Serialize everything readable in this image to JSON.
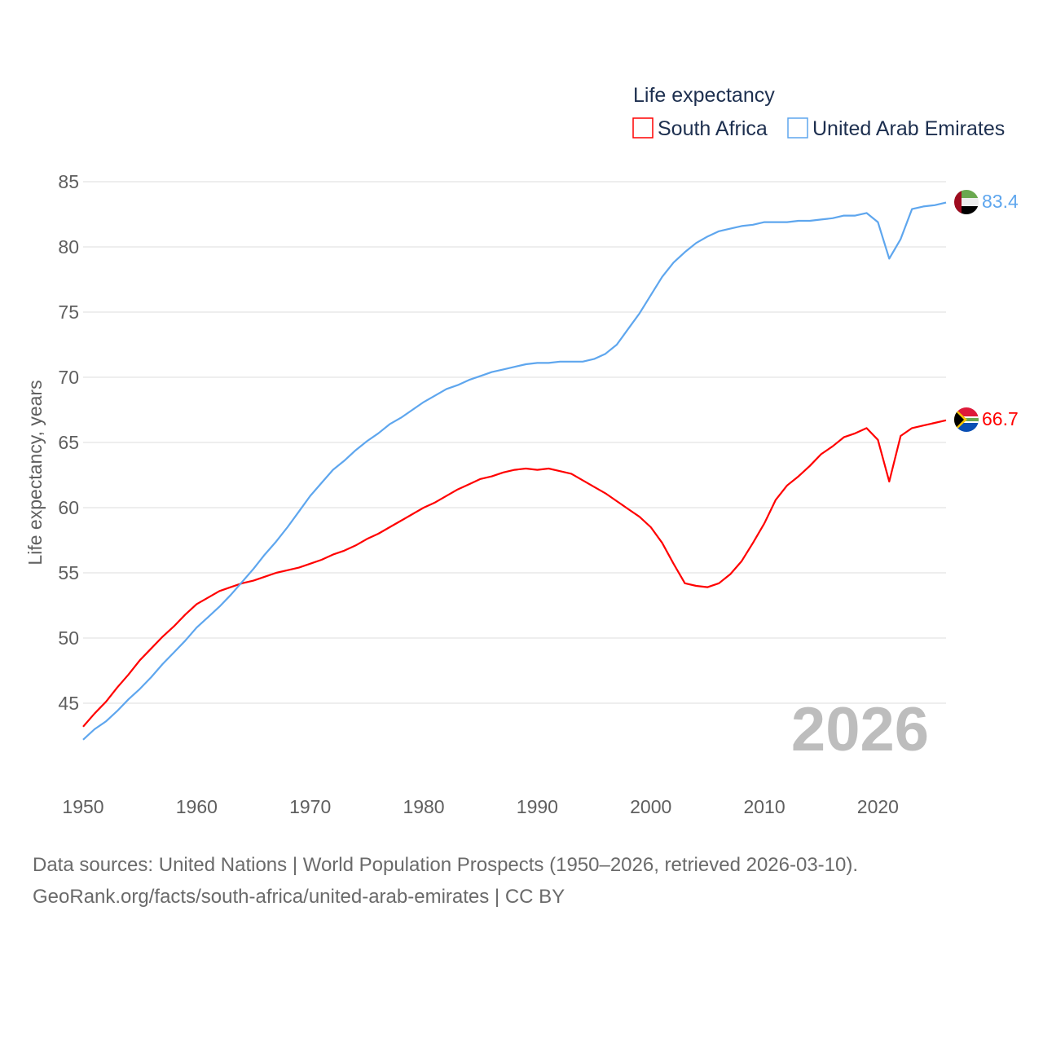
{
  "chart_data": {
    "type": "line",
    "title": "Life expectancy",
    "xlabel": "",
    "ylabel": "Life expectancy, years",
    "xlim": [
      1950,
      2026
    ],
    "ylim": [
      42,
      85
    ],
    "yticks": [
      45,
      50,
      55,
      60,
      65,
      70,
      75,
      80,
      85
    ],
    "xticks": [
      1950,
      1960,
      1970,
      1980,
      1990,
      2000,
      2010,
      2020
    ],
    "grid": true,
    "legend_placement": "top-right",
    "current_year_label": "2026",
    "x_start": 1950,
    "series": [
      {
        "name": "South Africa",
        "color": "#ff0000",
        "end_label": "66.7",
        "flag": "south-africa-flag",
        "values": [
          43.2,
          44.2,
          45.1,
          46.2,
          47.2,
          48.3,
          49.2,
          50.1,
          50.9,
          51.8,
          52.6,
          53.1,
          53.6,
          53.9,
          54.2,
          54.4,
          54.7,
          55.0,
          55.2,
          55.4,
          55.7,
          56.0,
          56.4,
          56.7,
          57.1,
          57.6,
          58.0,
          58.5,
          59.0,
          59.5,
          60.0,
          60.4,
          60.9,
          61.4,
          61.8,
          62.2,
          62.4,
          62.7,
          62.9,
          63.0,
          62.9,
          63.0,
          62.8,
          62.6,
          62.1,
          61.6,
          61.1,
          60.5,
          59.9,
          59.3,
          58.5,
          57.3,
          55.7,
          54.2,
          54.0,
          53.9,
          54.2,
          54.9,
          55.9,
          57.3,
          58.8,
          60.6,
          61.7,
          62.4,
          63.2,
          64.1,
          64.7,
          65.4,
          65.7,
          66.1,
          65.2,
          62.0,
          65.5,
          66.1,
          66.3,
          66.5,
          66.7
        ]
      },
      {
        "name": "United Arab Emirates",
        "color": "#5ea6ee",
        "end_label": "83.4",
        "flag": "uae-flag",
        "values": [
          42.2,
          43.0,
          43.6,
          44.4,
          45.3,
          46.1,
          47.0,
          48.0,
          48.9,
          49.8,
          50.8,
          51.6,
          52.4,
          53.3,
          54.3,
          55.3,
          56.4,
          57.4,
          58.5,
          59.7,
          60.9,
          61.9,
          62.9,
          63.6,
          64.4,
          65.1,
          65.7,
          66.4,
          66.9,
          67.5,
          68.1,
          68.6,
          69.1,
          69.4,
          69.8,
          70.1,
          70.4,
          70.6,
          70.8,
          71.0,
          71.1,
          71.1,
          71.2,
          71.2,
          71.2,
          71.4,
          71.8,
          72.5,
          73.7,
          74.9,
          76.3,
          77.7,
          78.8,
          79.6,
          80.3,
          80.8,
          81.2,
          81.4,
          81.6,
          81.7,
          81.9,
          81.9,
          81.9,
          82.0,
          82.0,
          82.1,
          82.2,
          82.4,
          82.4,
          82.6,
          81.9,
          79.1,
          80.6,
          82.9,
          83.1,
          83.2,
          83.4
        ]
      }
    ]
  },
  "footer": {
    "line1": "Data sources: United Nations | World Population Prospects (1950–2026, retrieved 2026-03-10).",
    "line2": "GeoRank.org/facts/south-africa/united-arab-emirates | CC BY"
  }
}
